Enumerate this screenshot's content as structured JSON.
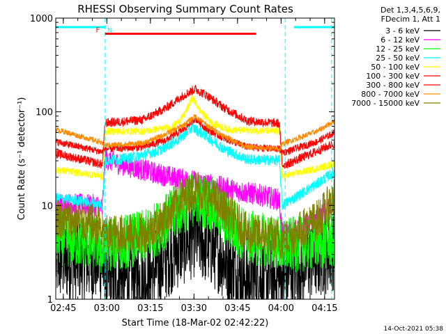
{
  "chart_data": {
    "type": "line",
    "title": "RHESSI Observing Summary Count Rates",
    "xlabel": "Start Time (18-Mar-02 02:42:22)",
    "ylabel": "Count Rate (s⁻¹ detector⁻¹)",
    "y_scale": "log",
    "ylim": [
      1,
      1000
    ],
    "xlim": [
      0,
      96
    ],
    "x_unit": "minutes after 02:42:22",
    "x_ticks": [
      {
        "t": 2.6,
        "label": "02:45"
      },
      {
        "t": 17.6,
        "label": "03:00"
      },
      {
        "t": 32.6,
        "label": "03:15"
      },
      {
        "t": 47.6,
        "label": "03:30"
      },
      {
        "t": 62.6,
        "label": "03:45"
      },
      {
        "t": 77.6,
        "label": "04:00"
      },
      {
        "t": 92.6,
        "label": "04:15"
      }
    ],
    "y_ticks": [
      {
        "v": 1,
        "label": "1"
      },
      {
        "v": 10,
        "label": "10"
      },
      {
        "v": 100,
        "label": "100"
      },
      {
        "v": 1000,
        "label": "1000"
      }
    ],
    "legend_header": [
      "Det 1,3,4,5,6,9,",
      "FDecim 1, Att 1"
    ],
    "series": [
      {
        "name": "3 - 6 keV",
        "color": "#000000",
        "noise": 0.45,
        "x": [
          0,
          15,
          16,
          17,
          32,
          40,
          48,
          56,
          63,
          64,
          78,
          79,
          80,
          90,
          96
        ],
        "y": [
          2.6,
          2.6,
          2.4,
          1.6,
          1.7,
          3.2,
          4.8,
          3.2,
          1.8,
          1.7,
          1.6,
          1.5,
          2.0,
          2.8,
          3.5
        ]
      },
      {
        "name": "6 - 12 keV",
        "color": "#ff00ff",
        "noise": 0.12,
        "x": [
          0,
          15,
          16,
          17,
          20,
          30,
          40,
          48,
          56,
          64,
          70,
          77,
          78,
          80,
          90,
          96
        ],
        "y": [
          10.5,
          10,
          9,
          32,
          29,
          24,
          20,
          18,
          16,
          14,
          13,
          11.5,
          5,
          5,
          7,
          11
        ]
      },
      {
        "name": "12 - 25 keV",
        "color": "#00ff00",
        "noise": 0.3,
        "x": [
          0,
          15,
          16,
          17,
          30,
          36,
          42,
          48,
          54,
          60,
          66,
          77,
          78,
          80,
          90,
          96
        ],
        "y": [
          4.5,
          4,
          3,
          3.8,
          4.5,
          6,
          9,
          12,
          10,
          6.5,
          4.5,
          4,
          3.5,
          3.8,
          4,
          4.2
        ]
      },
      {
        "name": "25 - 50 keV",
        "color": "#00ffff",
        "noise": 0.06,
        "x": [
          0,
          15,
          16,
          17,
          25,
          35,
          42,
          47,
          52,
          58,
          66,
          77,
          78,
          80,
          90,
          96
        ],
        "y": [
          12,
          10.5,
          9.5,
          30,
          32,
          38,
          50,
          68,
          55,
          40,
          31,
          30.5,
          10,
          11,
          17,
          23
        ]
      },
      {
        "name": "50 - 100 keV",
        "color": "#ffff00",
        "noise": 0.04,
        "x": [
          0,
          15,
          16,
          17,
          30,
          40,
          44,
          47,
          50,
          54,
          60,
          77,
          78,
          80,
          90,
          96
        ],
        "y": [
          24,
          21,
          20,
          62,
          62,
          68,
          90,
          140,
          100,
          75,
          64,
          62,
          20,
          21,
          25,
          28
        ]
      },
      {
        "name": "100 - 300 keV",
        "color": "#ff0000",
        "noise": 0.05,
        "x": [
          0,
          15,
          16,
          17,
          30,
          38,
          44,
          48,
          52,
          58,
          66,
          77,
          78,
          80,
          90,
          96
        ],
        "y": [
          36,
          28,
          27,
          76,
          82,
          110,
          150,
          175,
          150,
          110,
          80,
          75,
          27,
          28,
          38,
          46
        ]
      },
      {
        "name": "300 - 800 keV",
        "color": "#ff0000",
        "noise": 0.04,
        "x": [
          0,
          15,
          16,
          17,
          30,
          38,
          44,
          48,
          52,
          58,
          66,
          77,
          78,
          80,
          90,
          96
        ],
        "y": [
          48,
          38,
          37,
          40,
          42,
          50,
          65,
          85,
          65,
          52,
          42,
          40,
          37,
          38,
          48,
          60
        ]
      },
      {
        "name": "800 - 7000 keV",
        "color": "#ff8c00",
        "noise": 0.03,
        "x": [
          0,
          15,
          16,
          17,
          30,
          38,
          44,
          48,
          52,
          58,
          66,
          77,
          78,
          80,
          90,
          96
        ],
        "y": [
          65,
          48,
          45,
          44,
          46,
          58,
          72,
          90,
          72,
          55,
          42,
          40,
          45,
          48,
          62,
          80
        ]
      },
      {
        "name": "7000 - 15000 keV",
        "color": "#808000",
        "noise": 0.22,
        "x": [
          0,
          15,
          16,
          17,
          30,
          36,
          42,
          48,
          54,
          60,
          66,
          77,
          78,
          80,
          90,
          96
        ],
        "y": [
          7.5,
          6,
          5,
          4.8,
          5,
          6.5,
          11,
          15,
          12,
          8,
          5,
          4.5,
          4.2,
          4.5,
          7,
          12
        ]
      }
    ],
    "saa_band": {
      "color": "#00ffff",
      "value": 800,
      "segments": [
        [
          0,
          17
        ],
        [
          82,
          96
        ]
      ]
    },
    "night_markers": {
      "color": "#00ffff",
      "times": [
        17,
        79,
        95
      ]
    },
    "flare_band": {
      "color": "#ff0000",
      "value": 680,
      "start": 17,
      "end": 69
    },
    "markers": [
      {
        "label": "F",
        "t": 14.5,
        "color": "#ff0000"
      },
      {
        "label": "N",
        "t": 18.6,
        "color": "#00ffff"
      }
    ]
  },
  "footer": "14-Oct-2021 05:38"
}
